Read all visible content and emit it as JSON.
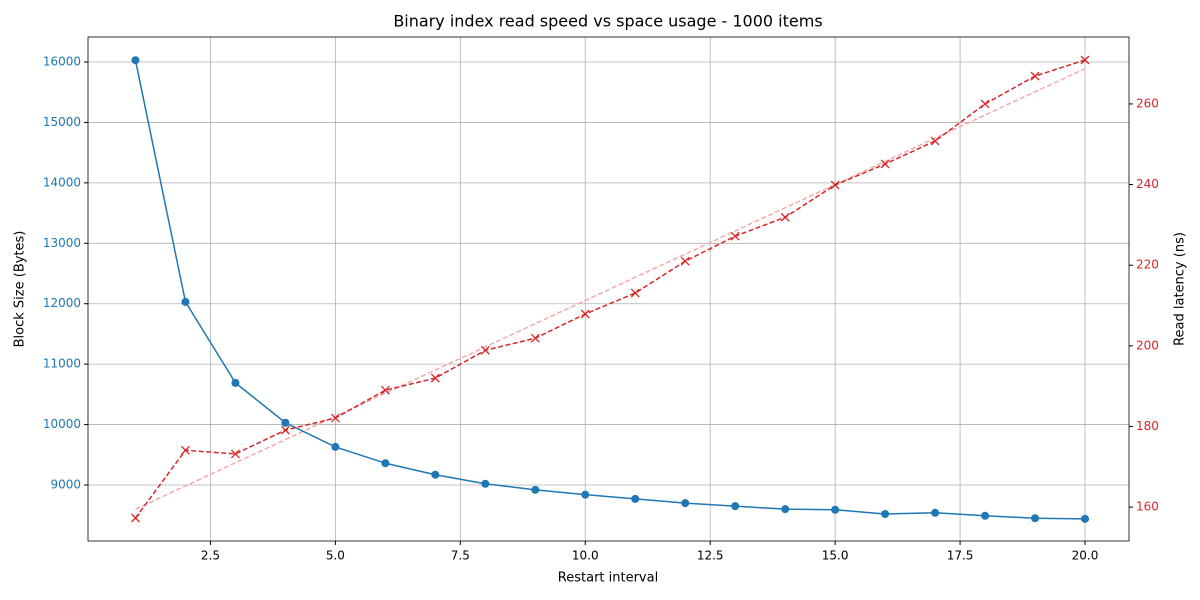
{
  "chart_data": {
    "type": "line",
    "title": "Binary index read speed vs space usage - 1000 items",
    "x_label": "Restart interval",
    "y_label": "Block Size (Bytes)",
    "y2_label": "Read latency (ns)",
    "x": [
      1,
      2,
      3,
      4,
      5,
      6,
      7,
      8,
      9,
      10,
      11,
      12,
      13,
      14,
      15,
      16,
      17,
      18,
      19,
      20
    ],
    "series": [
      {
        "color": "#1f77b4",
        "marker": "o",
        "linestyle": "solid",
        "values": [
          16030,
          12030,
          10690,
          10030,
          9630,
          9360,
          9170,
          9020,
          8920,
          8840,
          8770,
          8700,
          8650,
          8600,
          8590,
          8520,
          8540,
          8490,
          8450,
          8440
        ]
      },
      {
        "color": "#d62728",
        "marker": "x",
        "linestyle": "dashed",
        "axis": "y2",
        "values": [
          157.3,
          174.1,
          173.2,
          179.1,
          182.1,
          189.0,
          192.0,
          198.9,
          201.9,
          207.9,
          213.1,
          221.0,
          227.2,
          231.9,
          239.9,
          245.1,
          250.8,
          260.0,
          266.9,
          270.9
        ]
      },
      {
        "color": "#f4aaaa",
        "linestyle": "dashed",
        "axis": "y2",
        "values": [
          159.5,
          165.25,
          171,
          176.75,
          182.5,
          188.25,
          194,
          199.75,
          205.5,
          211.25,
          217,
          222.75,
          228.5,
          234.25,
          240,
          245.75,
          251.5,
          257.25,
          263,
          268.75
        ]
      }
    ],
    "xlim": [
      0.05,
      20.88
    ],
    "xticks": [
      2.5,
      {
        "value": 5,
        "label": "5.0"
      },
      7.5,
      {
        "value": 10,
        "label": "10.0"
      },
      12.5,
      {
        "value": 15,
        "label": "15.0"
      },
      17.5,
      {
        "value": 20,
        "label": "20.0"
      }
    ],
    "ylim": [
      8073,
      16414
    ],
    "yticks": [
      9000,
      10000,
      11000,
      12000,
      13000,
      14000,
      15000,
      16000
    ],
    "y2lim": [
      151.6,
      276.6
    ],
    "y2ticks": [
      160,
      180,
      200,
      220,
      240,
      260
    ],
    "y_color": "#1f77b4",
    "y2_color": "#d62728",
    "grid": true
  }
}
